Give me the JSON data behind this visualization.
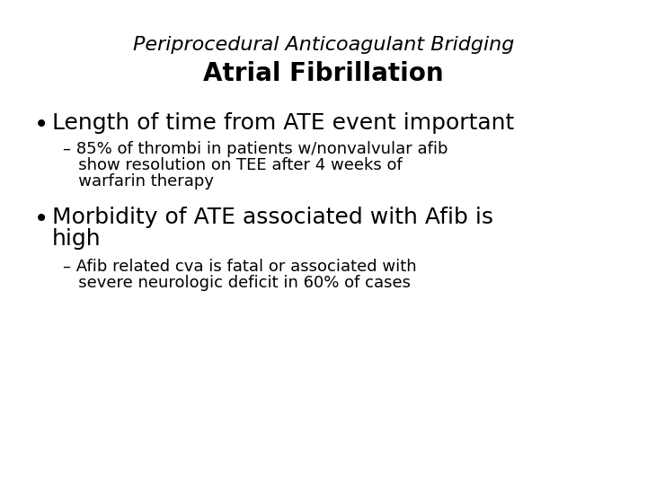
{
  "background_color": "#ffffff",
  "title_italic": "Periprocedural Anticoagulant Bridging",
  "title_bold": "Atrial Fibrillation",
  "title_italic_fontsize": 16,
  "title_bold_fontsize": 20,
  "bullet1": "Length of time from ATE event important",
  "bullet1_fontsize": 18,
  "sub1_line1": "– 85% of thrombi in patients w/nonvalvular afib",
  "sub1_line2": "   show resolution on TEE after 4 weeks of",
  "sub1_line3": "   warfarin therapy",
  "sub1_fontsize": 13,
  "bullet2_line1": "Morbidity of ATE associated with Afib is",
  "bullet2_line2": "high",
  "bullet2_fontsize": 18,
  "sub2_line1": "– Afib related cva is fatal or associated with",
  "sub2_line2": "   severe neurologic deficit in 60% of cases",
  "sub2_fontsize": 13,
  "text_color": "#000000"
}
